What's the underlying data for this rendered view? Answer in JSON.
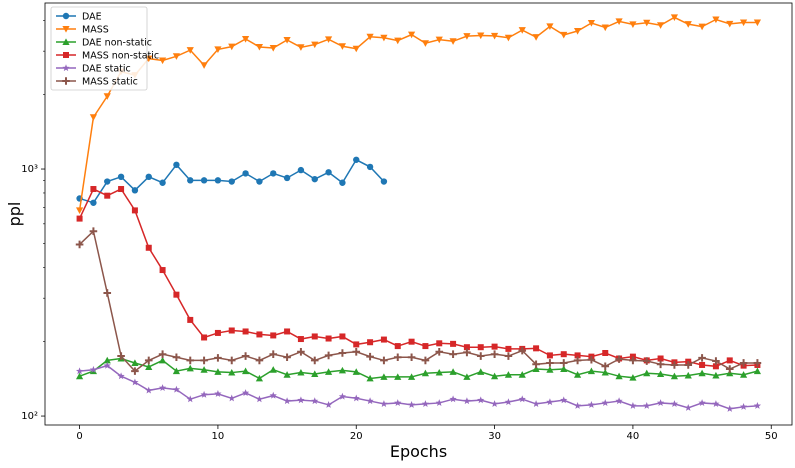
{
  "chart_data": {
    "type": "line",
    "title": "",
    "xlabel": "Epochs",
    "ylabel": "ppl",
    "yscale": "log",
    "xlim": [
      -2.5,
      51.5
    ],
    "ylim": [
      92,
      4700
    ],
    "x_ticks": [
      0,
      10,
      20,
      30,
      40,
      50
    ],
    "x_tick_labels": [
      "0",
      "10",
      "20",
      "30",
      "40",
      "50"
    ],
    "y_ticks": [
      100,
      1000
    ],
    "y_tick_labels": [
      "10²",
      "10³"
    ],
    "grid": false,
    "legend_position": "top-left",
    "series": [
      {
        "name": "DAE",
        "color": "#1f77b4",
        "marker": "circle",
        "x": [
          0,
          1,
          2,
          3,
          4,
          5,
          6,
          7,
          8,
          9,
          10,
          11,
          12,
          13,
          14,
          15,
          16,
          17,
          18,
          19,
          20,
          21,
          22
        ],
        "values": [
          760,
          730,
          890,
          930,
          820,
          930,
          880,
          1040,
          900,
          900,
          900,
          890,
          960,
          890,
          960,
          920,
          990,
          910,
          970,
          880,
          1090,
          1020,
          890
        ]
      },
      {
        "name": "MASS",
        "color": "#ff7f0e",
        "marker": "triangle-down",
        "x": [
          0,
          1,
          2,
          3,
          4,
          5,
          6,
          7,
          8,
          9,
          10,
          11,
          12,
          13,
          14,
          15,
          16,
          17,
          18,
          19,
          20,
          21,
          22,
          23,
          24,
          25,
          26,
          27,
          28,
          29,
          30,
          31,
          32,
          33,
          34,
          35,
          36,
          37,
          38,
          39,
          40,
          41,
          42,
          43,
          44,
          45,
          46,
          47,
          48,
          49
        ],
        "values": [
          680,
          1620,
          1970,
          2480,
          2400,
          2800,
          2750,
          2860,
          3030,
          2630,
          3050,
          3130,
          3360,
          3120,
          3090,
          3330,
          3110,
          3190,
          3350,
          3140,
          3070,
          3430,
          3400,
          3310,
          3500,
          3230,
          3340,
          3290,
          3450,
          3470,
          3460,
          3400,
          3650,
          3420,
          3780,
          3490,
          3620,
          3900,
          3740,
          3960,
          3850,
          3910,
          3820,
          4110,
          3860,
          3770,
          4030,
          3870,
          3920,
          3920
        ]
      },
      {
        "name": "DAE non-static",
        "color": "#2ca02c",
        "marker": "triangle-up",
        "x": [
          0,
          1,
          2,
          3,
          4,
          5,
          6,
          7,
          8,
          9,
          10,
          11,
          12,
          13,
          14,
          15,
          16,
          17,
          18,
          19,
          20,
          21,
          22,
          23,
          24,
          25,
          26,
          27,
          28,
          29,
          30,
          31,
          32,
          33,
          34,
          35,
          36,
          37,
          38,
          39,
          40,
          41,
          42,
          43,
          44,
          45,
          46,
          47,
          48,
          49
        ],
        "values": [
          145,
          152,
          168,
          171,
          164,
          158,
          168,
          152,
          156,
          154,
          151,
          150,
          152,
          142,
          154,
          147,
          150,
          148,
          151,
          153,
          151,
          142,
          144,
          144,
          144,
          149,
          150,
          151,
          144,
          151,
          145,
          147,
          147,
          155,
          154,
          155,
          147,
          152,
          150,
          145,
          143,
          149,
          148,
          145,
          146,
          149,
          146,
          149,
          147,
          152
        ]
      },
      {
        "name": "MASS non-static",
        "color": "#d62728",
        "marker": "square",
        "x": [
          0,
          1,
          2,
          3,
          4,
          5,
          6,
          7,
          8,
          9,
          10,
          11,
          12,
          13,
          14,
          15,
          16,
          17,
          18,
          19,
          20,
          21,
          22,
          23,
          24,
          25,
          26,
          27,
          28,
          29,
          30,
          31,
          32,
          33,
          34,
          35,
          36,
          37,
          38,
          39,
          40,
          41,
          42,
          43,
          44,
          45,
          46,
          47,
          48,
          49
        ],
        "values": [
          630,
          830,
          780,
          830,
          680,
          480,
          390,
          310,
          245,
          208,
          217,
          222,
          220,
          214,
          212,
          220,
          205,
          210,
          206,
          210,
          195,
          199,
          204,
          192,
          200,
          192,
          197,
          196,
          190,
          190,
          191,
          187,
          187,
          188,
          176,
          178,
          176,
          174,
          180,
          171,
          174,
          168,
          171,
          165,
          166,
          161,
          159,
          168,
          160,
          161
        ]
      },
      {
        "name": "DAE static",
        "color": "#9467bd",
        "marker": "star",
        "x": [
          0,
          1,
          2,
          3,
          4,
          5,
          6,
          7,
          8,
          9,
          10,
          11,
          12,
          13,
          14,
          15,
          16,
          17,
          18,
          19,
          20,
          21,
          22,
          23,
          24,
          25,
          26,
          27,
          28,
          29,
          30,
          31,
          32,
          33,
          34,
          35,
          36,
          37,
          38,
          39,
          40,
          41,
          42,
          43,
          44,
          45,
          46,
          47,
          48,
          49
        ],
        "values": [
          152,
          154,
          160,
          145,
          137,
          127,
          130,
          128,
          117,
          122,
          123,
          118,
          124,
          117,
          121,
          115,
          116,
          115,
          111,
          120,
          118,
          115,
          112,
          113,
          111,
          112,
          113,
          117,
          115,
          116,
          112,
          114,
          117,
          112,
          114,
          116,
          110,
          111,
          113,
          115,
          110,
          110,
          113,
          112,
          108,
          113,
          112,
          107,
          109,
          110
        ]
      },
      {
        "name": "MASS static",
        "color": "#8c564b",
        "marker": "plus",
        "x": [
          0,
          1,
          2,
          3,
          4,
          5,
          6,
          7,
          8,
          9,
          10,
          11,
          12,
          13,
          14,
          15,
          16,
          17,
          18,
          19,
          20,
          21,
          22,
          23,
          24,
          25,
          26,
          27,
          28,
          29,
          30,
          31,
          32,
          33,
          34,
          35,
          36,
          37,
          38,
          39,
          40,
          41,
          42,
          43,
          44,
          45,
          46,
          47,
          48,
          49
        ],
        "values": [
          495,
          560,
          315,
          175,
          152,
          168,
          178,
          173,
          168,
          168,
          172,
          168,
          175,
          168,
          178,
          173,
          182,
          168,
          176,
          180,
          182,
          174,
          168,
          173,
          173,
          168,
          182,
          178,
          181,
          175,
          178,
          175,
          184,
          162,
          164,
          164,
          168,
          169,
          159,
          170,
          168,
          167,
          162,
          161,
          161,
          172,
          167,
          155,
          164,
          164
        ]
      }
    ]
  }
}
